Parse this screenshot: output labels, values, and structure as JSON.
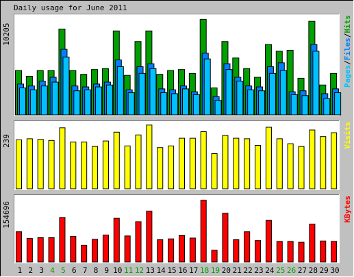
{
  "title": "Daily usage for June 2011",
  "colors": {
    "background": "#C0C0C0",
    "panel": "#FFFFFF",
    "hits": "#00A000",
    "files": "#0080FF",
    "pages": "#00C0FF",
    "visits": "#FFFF00",
    "kbytes": "#FF0000",
    "weekend_label": "#00A000",
    "weekday_label": "#000000"
  },
  "chart_data": [
    {
      "type": "bar",
      "panel": "hits",
      "ylabel_max": "10205",
      "legend": [
        "Pages",
        "/",
        "Files",
        "/",
        "Hits"
      ],
      "ylim": [
        0,
        10205
      ],
      "series": [
        {
          "name": "Hits",
          "values": [
            4600,
            4000,
            4600,
            4600,
            8900,
            4600,
            4200,
            4700,
            4800,
            8700,
            4100,
            7600,
            8700,
            4200,
            4600,
            4700,
            4300,
            9900,
            2800,
            7600,
            5900,
            4800,
            3900,
            7300,
            6600,
            6700,
            3800,
            9700,
            3100,
            4300
          ]
        },
        {
          "name": "Files",
          "values": [
            3200,
            3000,
            3500,
            3900,
            6800,
            3000,
            2900,
            3200,
            3400,
            5700,
            2600,
            5000,
            5300,
            2700,
            2600,
            3000,
            2400,
            6400,
            1900,
            5300,
            3900,
            3000,
            2900,
            5000,
            5400,
            2400,
            2500,
            7300,
            2200,
            2700
          ]
        },
        {
          "name": "Pages",
          "values": [
            2800,
            2600,
            3000,
            3400,
            6000,
            2500,
            2600,
            2900,
            3100,
            5000,
            2300,
            4300,
            4800,
            2300,
            2200,
            2700,
            2100,
            5800,
            1500,
            4700,
            3500,
            2600,
            2500,
            4300,
            4600,
            2100,
            2000,
            6600,
            1700,
            2300
          ]
        }
      ]
    },
    {
      "type": "bar",
      "panel": "visits",
      "ylabel_max": "239",
      "legend": [
        "Visits"
      ],
      "ylim": [
        0,
        239
      ],
      "series": [
        {
          "name": "Visits",
          "values": [
            178,
            182,
            180,
            176,
            222,
            170,
            170,
            154,
            174,
            206,
            156,
            196,
            232,
            150,
            156,
            184,
            184,
            208,
            128,
            194,
            184,
            182,
            158,
            224,
            182,
            164,
            154,
            214,
            190,
            204
          ]
        }
      ]
    },
    {
      "type": "bar",
      "panel": "kbytes",
      "ylabel_max": "154696",
      "legend": [
        "KBytes"
      ],
      "ylim": [
        0,
        154696
      ],
      "series": [
        {
          "name": "KBytes",
          "values": [
            72000,
            56000,
            58000,
            58000,
            106000,
            61000,
            40000,
            54000,
            64000,
            104000,
            62000,
            96000,
            121000,
            53000,
            55000,
            63000,
            57000,
            147000,
            28000,
            116000,
            53000,
            72000,
            51000,
            99000,
            49000,
            49000,
            47000,
            90000,
            50000,
            49000
          ]
        }
      ]
    }
  ],
  "x_labels": [
    "1",
    "2",
    "3",
    "4",
    "5",
    "6",
    "7",
    "8",
    "9",
    "10",
    "11",
    "12",
    "13",
    "14",
    "15",
    "16",
    "17",
    "18",
    "19",
    "20",
    "21",
    "22",
    "23",
    "24",
    "25",
    "26",
    "27",
    "28",
    "29",
    "30"
  ],
  "weekend_days": [
    "4",
    "5",
    "11",
    "12",
    "18",
    "19",
    "25",
    "26"
  ]
}
